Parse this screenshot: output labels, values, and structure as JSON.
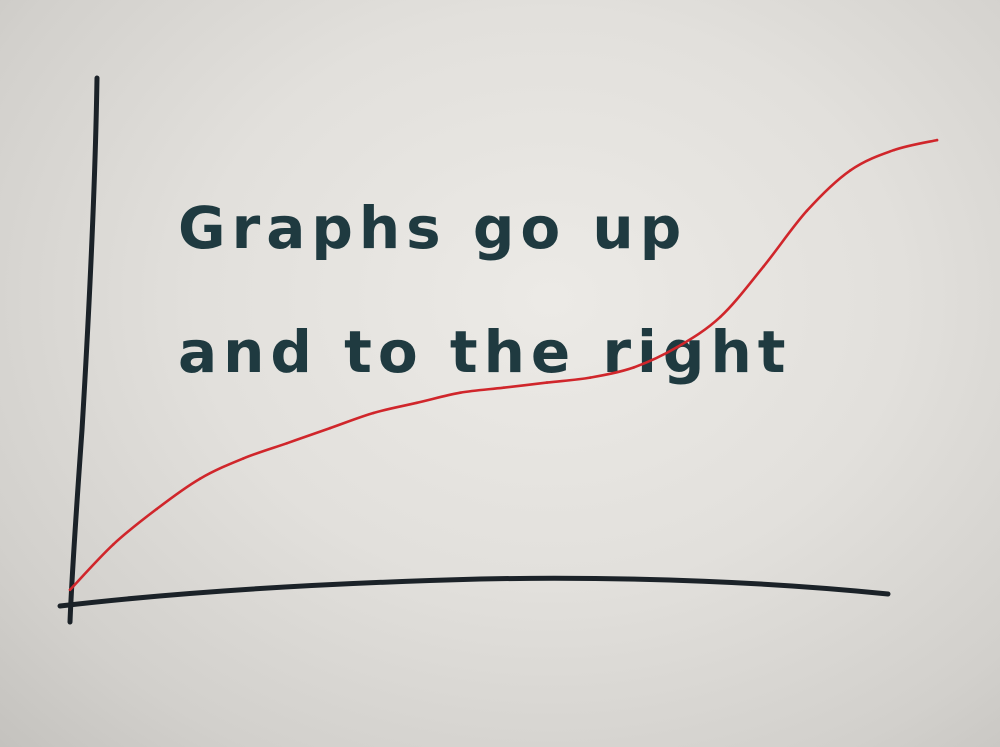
{
  "chart_data": {
    "type": "line",
    "title_lines": [
      "Graphs go up",
      "and to the right"
    ],
    "xlabel": "",
    "ylabel": "",
    "grid": false,
    "series": [
      {
        "color": "#d0262b",
        "x": [
          0,
          5,
          10,
          15,
          20,
          25,
          30,
          35,
          40,
          45,
          50,
          55,
          60,
          65,
          70,
          75,
          80,
          85,
          90,
          95,
          100
        ],
        "y": [
          3,
          12,
          19,
          25,
          29,
          32,
          35,
          38,
          40,
          42,
          43,
          44,
          45,
          47,
          51,
          57,
          67,
          78,
          86,
          90,
          92
        ]
      }
    ]
  }
}
